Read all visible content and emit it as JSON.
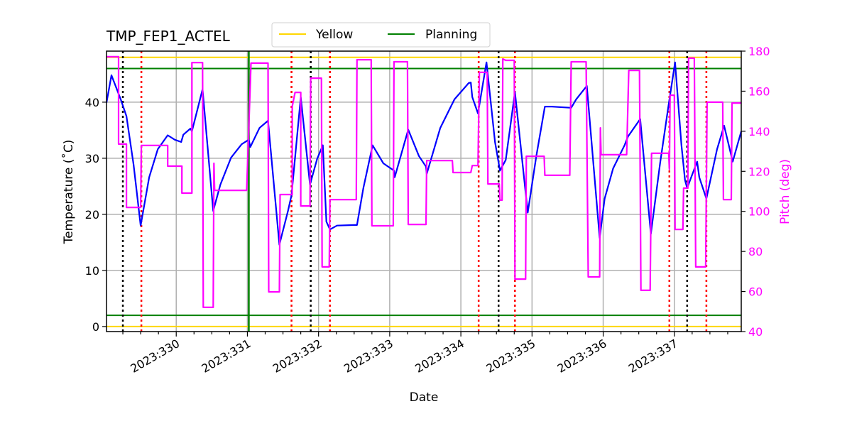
{
  "chart_data": {
    "type": "line",
    "title": "TMP_FEP1_ACTEL",
    "xlabel": "Date",
    "ylabel": "Temperature ($^\\circ$C)",
    "ylabel_display": "Temperature (˚C)",
    "y2label": "Pitch (deg)",
    "xlim": [
      329.02,
      337.94
    ],
    "ylim": [
      -0.9,
      49.1
    ],
    "y2lim": [
      40,
      180
    ],
    "grid": true,
    "x_ticks": [
      330,
      331,
      332,
      333,
      334,
      335,
      336,
      337
    ],
    "x_tick_labels": [
      "2023:330",
      "2023:331",
      "2023:332",
      "2023:333",
      "2023:334",
      "2023:335",
      "2023:336",
      "2023:337"
    ],
    "y_ticks": [
      0,
      10,
      20,
      30,
      40
    ],
    "y_tick_labels": [
      "0",
      "10",
      "20",
      "30",
      "40"
    ],
    "y2_ticks": [
      40,
      60,
      80,
      100,
      120,
      140,
      160,
      180
    ],
    "y2_tick_labels": [
      "40",
      "60",
      "80",
      "100",
      "120",
      "140",
      "160",
      "180"
    ],
    "legend": {
      "placement": "top-center-outside",
      "entries": [
        {
          "label": "Yellow",
          "color": "#ffd700"
        },
        {
          "label": "Planning",
          "color": "#008000"
        }
      ]
    },
    "limit_lines": [
      {
        "name": "Yellow",
        "value": 48,
        "color": "#ffd700"
      },
      {
        "name": "Yellow",
        "value": 0,
        "color": "#ffd700"
      },
      {
        "name": "Planning",
        "value": 46,
        "color": "#008000"
      },
      {
        "name": "Planning",
        "value": 2,
        "color": "#008000"
      }
    ],
    "planning_change_day": 331.02,
    "black_dotted_days": [
      329.25,
      331.89,
      334.53,
      337.18
    ],
    "red_dotted_days": [
      329.51,
      331.62,
      332.16,
      334.25,
      334.76,
      336.93,
      337.45
    ],
    "series": [
      {
        "name": "Temperature",
        "axis": "left",
        "color": "#0000ff",
        "points": [
          [
            329.02,
            39.9
          ],
          [
            329.09,
            44.8
          ],
          [
            329.22,
            40.5
          ],
          [
            329.3,
            37.5
          ],
          [
            329.4,
            28.9
          ],
          [
            329.5,
            18.0
          ],
          [
            329.62,
            26.6
          ],
          [
            329.74,
            31.6
          ],
          [
            329.88,
            34.1
          ],
          [
            329.98,
            33.3
          ],
          [
            330.07,
            32.9
          ],
          [
            330.1,
            34.2
          ],
          [
            330.2,
            35.3
          ],
          [
            330.22,
            34.8
          ],
          [
            330.37,
            42.3
          ],
          [
            330.52,
            20.6
          ],
          [
            330.62,
            25.3
          ],
          [
            330.77,
            30.1
          ],
          [
            330.92,
            32.5
          ],
          [
            331.02,
            33.3
          ],
          [
            331.04,
            32.0
          ],
          [
            331.17,
            35.4
          ],
          [
            331.29,
            36.7
          ],
          [
            331.45,
            14.6
          ],
          [
            331.57,
            20.6
          ],
          [
            331.62,
            23.4
          ],
          [
            331.75,
            40.9
          ],
          [
            331.88,
            25.3
          ],
          [
            331.98,
            29.9
          ],
          [
            332.06,
            32.3
          ],
          [
            332.11,
            18.7
          ],
          [
            332.16,
            17.3
          ],
          [
            332.26,
            18.0
          ],
          [
            332.51,
            18.1
          ],
          [
            332.54,
            18.1
          ],
          [
            332.63,
            24.7
          ],
          [
            332.76,
            32.3
          ],
          [
            332.91,
            29.1
          ],
          [
            333.06,
            27.8
          ],
          [
            333.07,
            26.6
          ],
          [
            333.26,
            35.1
          ],
          [
            333.41,
            30.4
          ],
          [
            333.51,
            28.5
          ],
          [
            333.52,
            27.2
          ],
          [
            333.71,
            35.4
          ],
          [
            333.91,
            40.5
          ],
          [
            334.11,
            43.4
          ],
          [
            334.14,
            43.5
          ],
          [
            334.16,
            40.9
          ],
          [
            334.24,
            38.0
          ],
          [
            334.36,
            47.1
          ],
          [
            334.48,
            32.9
          ],
          [
            334.55,
            27.8
          ],
          [
            334.63,
            29.7
          ],
          [
            334.76,
            41.8
          ],
          [
            334.94,
            20.3
          ],
          [
            335.06,
            30.4
          ],
          [
            335.18,
            39.2
          ],
          [
            335.28,
            39.2
          ],
          [
            335.55,
            39.0
          ],
          [
            335.62,
            40.5
          ],
          [
            335.77,
            42.9
          ],
          [
            335.95,
            15.8
          ],
          [
            336.02,
            22.8
          ],
          [
            336.14,
            28.2
          ],
          [
            336.3,
            32.3
          ],
          [
            336.35,
            33.9
          ],
          [
            336.52,
            37.0
          ],
          [
            336.67,
            16.5
          ],
          [
            336.8,
            29.1
          ],
          [
            336.92,
            39.6
          ],
          [
            337.01,
            47.1
          ],
          [
            337.1,
            32.3
          ],
          [
            337.15,
            26.1
          ],
          [
            337.18,
            24.7
          ],
          [
            337.32,
            29.4
          ],
          [
            337.35,
            26.6
          ],
          [
            337.45,
            22.8
          ],
          [
            337.6,
            31.6
          ],
          [
            337.7,
            35.8
          ],
          [
            337.82,
            29.4
          ],
          [
            337.94,
            34.8
          ]
        ]
      },
      {
        "name": "Pitch",
        "axis": "right",
        "color": "#ff00ff",
        "points": [
          [
            329.02,
            177.2
          ],
          [
            329.19,
            177.2
          ],
          [
            329.19,
            133.6
          ],
          [
            329.3,
            133.6
          ],
          [
            329.3,
            102.0
          ],
          [
            329.5,
            102.0
          ],
          [
            329.51,
            132.9
          ],
          [
            329.88,
            132.9
          ],
          [
            329.88,
            122.6
          ],
          [
            330.08,
            122.6
          ],
          [
            330.08,
            109.1
          ],
          [
            330.22,
            109.1
          ],
          [
            330.22,
            174.3
          ],
          [
            330.37,
            174.3
          ],
          [
            330.38,
            52.1
          ],
          [
            330.52,
            52.1
          ],
          [
            330.53,
            124.0
          ],
          [
            330.54,
            110.5
          ],
          [
            330.99,
            110.5
          ],
          [
            331.05,
            174.0
          ],
          [
            331.29,
            174.0
          ],
          [
            331.3,
            59.8
          ],
          [
            331.45,
            59.8
          ],
          [
            331.46,
            108.4
          ],
          [
            331.63,
            108.4
          ],
          [
            331.63,
            152.4
          ],
          [
            331.67,
            159.4
          ],
          [
            331.75,
            159.4
          ],
          [
            331.75,
            102.7
          ],
          [
            331.88,
            102.7
          ],
          [
            331.89,
            166.5
          ],
          [
            332.04,
            166.5
          ],
          [
            332.05,
            72.3
          ],
          [
            332.15,
            72.3
          ],
          [
            332.16,
            105.9
          ],
          [
            332.53,
            105.9
          ],
          [
            332.54,
            175.7
          ],
          [
            332.74,
            175.7
          ],
          [
            332.75,
            92.8
          ],
          [
            333.05,
            92.8
          ],
          [
            333.06,
            174.7
          ],
          [
            333.25,
            174.7
          ],
          [
            333.26,
            93.5
          ],
          [
            333.51,
            93.5
          ],
          [
            333.52,
            125.4
          ],
          [
            333.88,
            125.4
          ],
          [
            333.89,
            119.4
          ],
          [
            334.14,
            119.4
          ],
          [
            334.16,
            122.9
          ],
          [
            334.24,
            122.9
          ],
          [
            334.26,
            169.4
          ],
          [
            334.37,
            169.4
          ],
          [
            334.38,
            113.7
          ],
          [
            334.54,
            113.7
          ],
          [
            334.55,
            105.6
          ],
          [
            334.58,
            105.6
          ],
          [
            334.59,
            176.1
          ],
          [
            334.63,
            175.4
          ],
          [
            334.75,
            175.4
          ],
          [
            334.76,
            66.2
          ],
          [
            334.91,
            66.2
          ],
          [
            334.92,
            127.5
          ],
          [
            335.17,
            127.5
          ],
          [
            335.18,
            118.0
          ],
          [
            335.53,
            118.0
          ],
          [
            335.55,
            174.7
          ],
          [
            335.76,
            174.7
          ],
          [
            335.79,
            67.3
          ],
          [
            335.95,
            67.3
          ],
          [
            335.96,
            141.7
          ],
          [
            335.97,
            128.3
          ],
          [
            336.33,
            128.3
          ],
          [
            336.36,
            170.4
          ],
          [
            336.51,
            170.4
          ],
          [
            336.53,
            60.6
          ],
          [
            336.66,
            60.6
          ],
          [
            336.68,
            129.0
          ],
          [
            336.92,
            129.0
          ],
          [
            336.93,
            121.0
          ],
          [
            336.94,
            158.0
          ],
          [
            337.0,
            158.0
          ],
          [
            337.01,
            91.0
          ],
          [
            337.12,
            91.0
          ],
          [
            337.13,
            111.6
          ],
          [
            337.19,
            111.6
          ],
          [
            337.2,
            176.5
          ],
          [
            337.28,
            176.5
          ],
          [
            337.3,
            72.3
          ],
          [
            337.44,
            72.3
          ],
          [
            337.46,
            154.5
          ],
          [
            337.68,
            154.5
          ],
          [
            337.69,
            105.9
          ],
          [
            337.8,
            105.9
          ],
          [
            337.81,
            154.1
          ],
          [
            337.94,
            154.1
          ]
        ]
      }
    ]
  }
}
